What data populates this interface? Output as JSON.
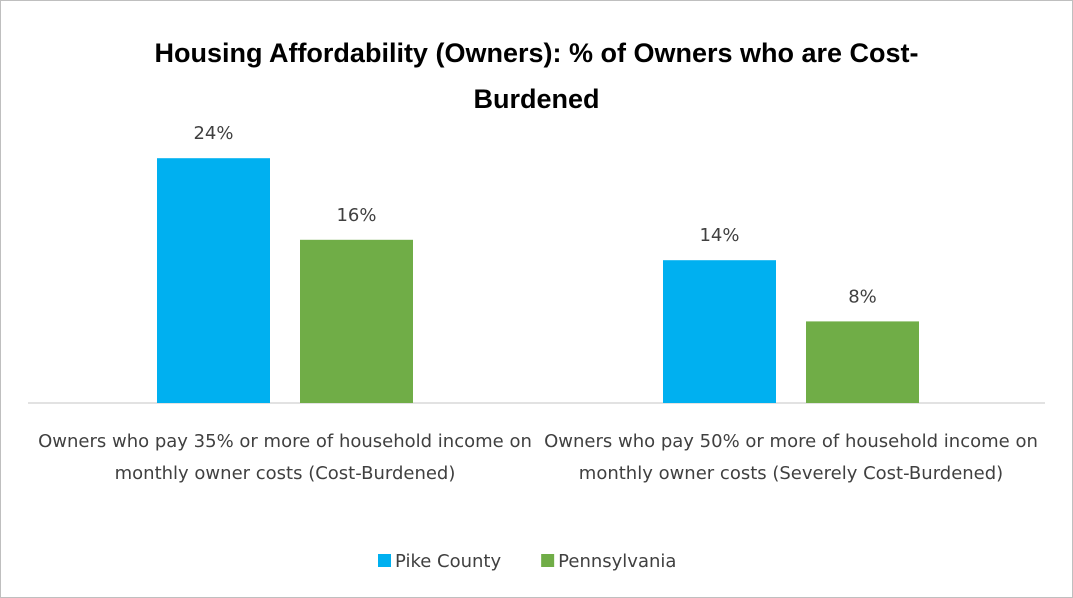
{
  "chart_data": {
    "type": "bar",
    "title": "Housing Affordability (Owners): % of Owners who are Cost-Burdened",
    "categories": [
      "Owners who pay 35% or more of household income on monthly owner costs (Cost-Burdened)",
      "Owners who pay 50% or more of household income on monthly owner costs (Severely Cost-Burdened)"
    ],
    "series": [
      {
        "name": "Pike County",
        "color": "#00b0f0",
        "values": [
          24,
          14
        ],
        "value_labels": [
          "24%",
          "14%"
        ]
      },
      {
        "name": "Pennsylvania",
        "color": "#70ad47",
        "values": [
          16,
          8
        ],
        "value_labels": [
          "16%",
          "8%"
        ]
      }
    ],
    "legend": "bottom"
  }
}
